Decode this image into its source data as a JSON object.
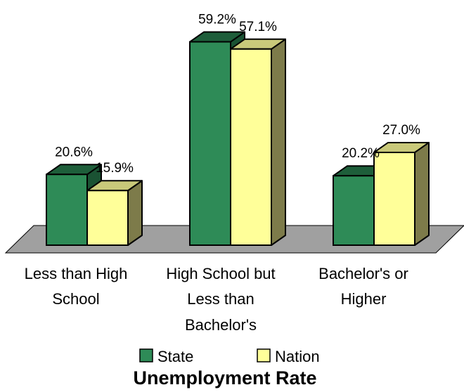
{
  "chart_data": {
    "type": "bar",
    "title": "Unemployment Rate",
    "categories": [
      [
        "Less than High",
        "School"
      ],
      [
        "High School but",
        "Less than",
        "Bachelor's"
      ],
      [
        "Bachelor's or",
        "Higher"
      ]
    ],
    "series": [
      {
        "name": "State",
        "values": [
          20.6,
          59.2,
          20.2
        ],
        "labels": [
          "20.6%",
          "59.2%",
          "20.2%"
        ],
        "colors": {
          "front": "#2e8b57",
          "top": "#1e5e3a",
          "side": "#1a5233"
        }
      },
      {
        "name": "Nation",
        "values": [
          15.9,
          57.1,
          27.0
        ],
        "labels": [
          "15.9%",
          "57.1%",
          "27.0%"
        ],
        "colors": {
          "front": "#ffff99",
          "top": "#c9c97a",
          "side": "#7d7b4a"
        }
      }
    ],
    "ylim": [
      0,
      60
    ],
    "grid": false,
    "legend": "bottom",
    "floor_color": "#a0a0a0"
  }
}
